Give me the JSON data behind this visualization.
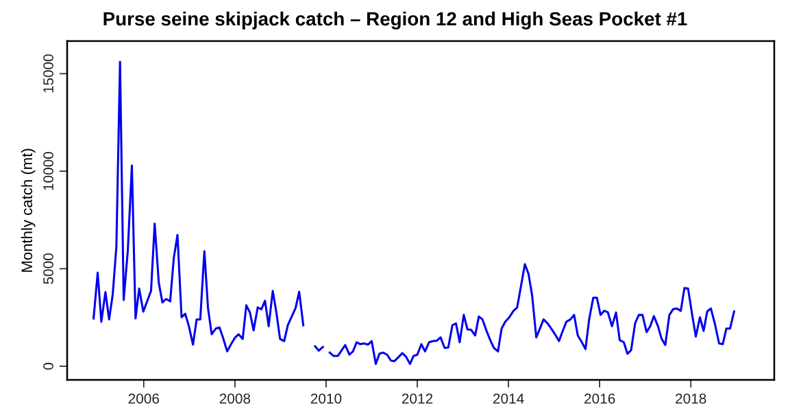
{
  "chart_data": {
    "type": "line",
    "title": "Purse seine skipjack catch – Region 12 and High Seas Pocket #1",
    "ylabel": "Monthly catch (mt)",
    "xlim": [
      2004.32,
      2019.83
    ],
    "xticks": [
      2006,
      2008,
      2010,
      2012,
      2014,
      2016,
      2018
    ],
    "ylim": [
      -700,
      16670
    ],
    "yticks": [
      0,
      5000,
      10000,
      15000
    ],
    "grid": false,
    "line_style": "solid",
    "marker": "none",
    "series": [
      {
        "color": "#0000ee",
        "x": [
          2004.9,
          2004.99,
          2005.07,
          2005.16,
          2005.24,
          2005.32,
          2005.4,
          2005.48,
          2005.56,
          2005.65,
          2005.74,
          2005.82,
          2005.9,
          2005.99,
          2006.16,
          2006.24,
          2006.33,
          2006.41,
          2006.49,
          2006.58,
          2006.66,
          2006.74,
          2006.83,
          2006.91,
          2006.99,
          2007.08,
          2007.16,
          2007.24,
          2007.33,
          2007.41,
          2007.49,
          2007.58,
          2007.66,
          2007.74,
          2007.83,
          2007.91,
          2008.0,
          2008.08,
          2008.17,
          2008.25,
          2008.33,
          2008.41,
          2008.5,
          2008.58,
          2008.66,
          2008.74,
          2008.83,
          2008.91,
          2008.99,
          2009.08,
          2009.16,
          2009.33,
          2009.41,
          2009.5,
          2009.63,
          2009.76,
          2009.84,
          2009.93,
          2010.0,
          2010.08,
          2010.16,
          2010.26,
          2010.33,
          2010.42,
          2010.51,
          2010.59,
          2010.67,
          2010.75,
          2010.83,
          2010.92,
          2011.0,
          2011.09,
          2011.17,
          2011.25,
          2011.34,
          2011.42,
          2011.5,
          2011.59,
          2011.67,
          2011.75,
          2011.84,
          2011.92,
          2012.0,
          2012.09,
          2012.17,
          2012.26,
          2012.35,
          2012.43,
          2012.51,
          2012.6,
          2012.68,
          2012.77,
          2012.85,
          2012.93,
          2013.02,
          2013.1,
          2013.18,
          2013.27,
          2013.35,
          2013.43,
          2013.52,
          2013.6,
          2013.68,
          2013.77,
          2013.85,
          2013.93,
          2014.02,
          2014.11,
          2014.19,
          2014.27,
          2014.36,
          2014.44,
          2014.52,
          2014.61,
          2014.69,
          2014.77,
          2014.86,
          2014.94,
          2015.02,
          2015.11,
          2015.19,
          2015.27,
          2015.36,
          2015.44,
          2015.52,
          2015.61,
          2015.69,
          2015.77,
          2015.86,
          2015.94,
          2016.02,
          2016.1,
          2016.18,
          2016.27,
          2016.36,
          2016.44,
          2016.53,
          2016.61,
          2016.69,
          2016.78,
          2016.86,
          2016.94,
          2017.03,
          2017.11,
          2017.19,
          2017.28,
          2017.36,
          2017.44,
          2017.53,
          2017.61,
          2017.69,
          2017.78,
          2017.86,
          2017.94,
          2018.03,
          2018.11,
          2018.2,
          2018.28,
          2018.36,
          2018.44,
          2018.53,
          2018.62,
          2018.7,
          2018.78,
          2018.86,
          2018.95
        ],
        "values": [
          2450,
          4800,
          2280,
          3800,
          2400,
          3680,
          6140,
          15610,
          3400,
          5900,
          10290,
          2450,
          3980,
          2800,
          3860,
          7310,
          4280,
          3270,
          3450,
          3330,
          5560,
          6730,
          2510,
          2690,
          2050,
          1110,
          2400,
          2400,
          5900,
          2980,
          1640,
          1930,
          1990,
          1460,
          760,
          1110,
          1460,
          1640,
          1400,
          3120,
          2750,
          1840,
          3020,
          2920,
          3360,
          2050,
          3860,
          2750,
          1400,
          1290,
          2100,
          2980,
          3820,
          2100,
          null,
          1020,
          800,
          990,
          null,
          700,
          530,
          530,
          780,
          1090,
          590,
          760,
          1230,
          1130,
          1170,
          1110,
          1290,
          120,
          640,
          700,
          590,
          290,
          260,
          470,
          670,
          500,
          120,
          530,
          590,
          1130,
          760,
          1230,
          1290,
          1310,
          1480,
          940,
          960,
          2100,
          2190,
          1230,
          2630,
          1890,
          1870,
          1580,
          2550,
          2400,
          1810,
          1340,
          940,
          760,
          1930,
          2280,
          2510,
          2840,
          3010,
          4040,
          5230,
          4740,
          3620,
          1480,
          1930,
          2400,
          2190,
          1930,
          1640,
          1290,
          1810,
          2280,
          2400,
          2630,
          1580,
          1230,
          880,
          2400,
          3510,
          3510,
          2630,
          2840,
          2770,
          2050,
          2750,
          1340,
          1230,
          640,
          820,
          2220,
          2630,
          2630,
          1750,
          2050,
          2570,
          2050,
          1400,
          1090,
          2630,
          2920,
          2960,
          2840,
          4010,
          3980,
          2630,
          1520,
          2510,
          1810,
          2810,
          2960,
          2160,
          1170,
          1130,
          1930,
          1930,
          2810
        ]
      }
    ]
  }
}
